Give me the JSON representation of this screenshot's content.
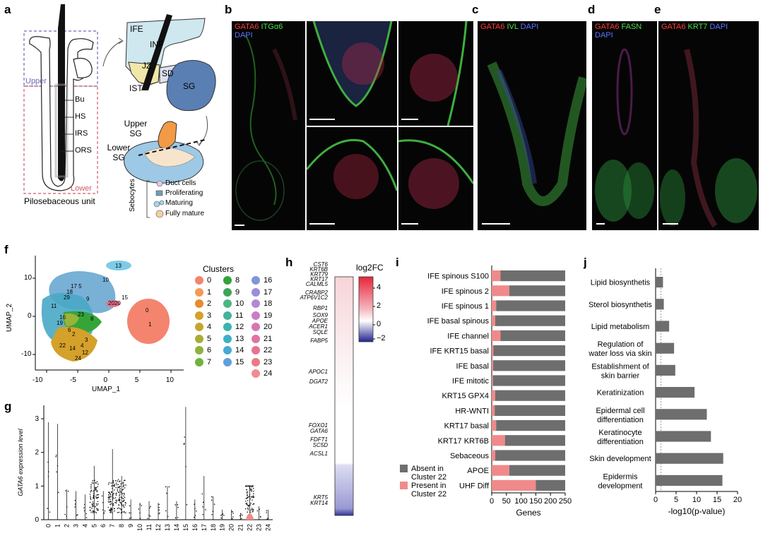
{
  "panel_letters": [
    "a",
    "b",
    "c",
    "d",
    "e",
    "f",
    "g",
    "h",
    "i",
    "j"
  ],
  "panel_a": {
    "upper": "Upper",
    "lower": "Lower",
    "structures": [
      "Bu",
      "HS",
      "IRS",
      "ORS"
    ],
    "caption": "Pilosebaceous unit",
    "regions": [
      "IFE",
      "INF",
      "JZ",
      "SD",
      "IST",
      "SG"
    ],
    "sg_labels": [
      "Upper SG",
      "Lower SG"
    ],
    "legend_title": "Sebocytes",
    "legend_items": [
      "Duct cells",
      "Proliferating",
      "Maturing",
      "Fully mature"
    ]
  },
  "panel_b": {
    "stain": [
      "GATA6",
      "ITGα6",
      "DAPI"
    ]
  },
  "panel_c": {
    "stain": [
      "GATA6",
      "IVL",
      "DAPI"
    ]
  },
  "panel_d": {
    "stain": [
      "GATA6",
      "FASN",
      "DAPI"
    ]
  },
  "panel_e": {
    "stain": [
      "GATA6",
      "KRT7",
      "DAPI"
    ]
  },
  "panel_f": {
    "xlabel": "UMAP_1",
    "ylabel": "UMAP_2",
    "xticks": [
      "-10",
      "-5",
      "0",
      "5",
      "10"
    ],
    "yticks": [
      "10",
      "0",
      "-10"
    ],
    "legend_title": "Clusters",
    "clusters": [
      {
        "id": "0",
        "color": "#f4846e"
      },
      {
        "id": "1",
        "color": "#f49a55"
      },
      {
        "id": "2",
        "color": "#e98a2b"
      },
      {
        "id": "3",
        "color": "#d4a12a"
      },
      {
        "id": "4",
        "color": "#c5a52e"
      },
      {
        "id": "5",
        "color": "#a9ad33"
      },
      {
        "id": "6",
        "color": "#8fb23a"
      },
      {
        "id": "7",
        "color": "#6fb33d"
      },
      {
        "id": "8",
        "color": "#2fa43a"
      },
      {
        "id": "9",
        "color": "#3aa55a"
      },
      {
        "id": "10",
        "color": "#4db486"
      },
      {
        "id": "11",
        "color": "#43b39a"
      },
      {
        "id": "12",
        "color": "#3bb4b0"
      },
      {
        "id": "13",
        "color": "#3cb1c6"
      },
      {
        "id": "14",
        "color": "#48a8d6"
      },
      {
        "id": "15",
        "color": "#5f9fdb"
      },
      {
        "id": "16",
        "color": "#7e96da"
      },
      {
        "id": "17",
        "color": "#9a8fd6"
      },
      {
        "id": "18",
        "color": "#b38ad0"
      },
      {
        "id": "19",
        "color": "#c77fc6"
      },
      {
        "id": "20",
        "color": "#d677b5"
      },
      {
        "id": "21",
        "color": "#df74a4"
      },
      {
        "id": "22",
        "color": "#e6738f"
      },
      {
        "id": "23",
        "color": "#ea7a82"
      },
      {
        "id": "24",
        "color": "#ef8c91"
      }
    ]
  },
  "panel_h": {
    "colorbar_title": "log2FC",
    "colorbar_ticks": [
      "4",
      "2",
      "0",
      "−2"
    ],
    "genes": [
      "CST6",
      "KRT6B",
      "KRT79",
      "KRT17",
      "CALML5",
      "CRABP2",
      "ATP6V1C2",
      "RBP1",
      "SOX9",
      "APOE",
      "ACER1",
      "SQLE",
      "FABP5",
      "APOC1",
      "DGAT2",
      "FOXO1",
      "GATA6",
      "FDFT1",
      "SC5D",
      "ACSL1",
      "KRT5",
      "KRT14"
    ]
  },
  "chart_data": [
    {
      "panel": "g",
      "type": "scatter",
      "ylabel": "GATA6 expression level",
      "categories": [
        "0",
        "1",
        "2",
        "3",
        "4",
        "5",
        "6",
        "7",
        "8",
        "9",
        "10",
        "11",
        "12",
        "13",
        "14",
        "15",
        "16",
        "17",
        "18",
        "19",
        "20",
        "21",
        "22",
        "23",
        "24"
      ],
      "yticks": [
        "0",
        "1",
        "2",
        "3"
      ],
      "ylim": [
        0,
        3.4
      ],
      "max_values": [
        2.9,
        2.85,
        0.9,
        0.85,
        0.75,
        1.6,
        0.85,
        2.1,
        1.3,
        0.6,
        0.5,
        0.55,
        0.5,
        1.0,
        0.55,
        3.35,
        0.6,
        1.3,
        0.7,
        0.3,
        0.3,
        0.2,
        1.0,
        0.4,
        0.3
      ],
      "dense_clusters": [
        "5",
        "7",
        "8",
        "22"
      ]
    },
    {
      "panel": "i",
      "type": "bar",
      "orientation": "horizontal",
      "stacked": true,
      "xlabel": "Genes",
      "xticks": [
        "0",
        "50",
        "100",
        "150",
        "200",
        "250"
      ],
      "xlim": [
        0,
        250
      ],
      "categories": [
        "IFE spinous S100",
        "IFE spinous 2",
        "IFE spinous 1",
        "IFE basal spinous",
        "IFE channel",
        "IFE KRT15 basal",
        "IFE basal",
        "IFE mitotic",
        "KRT15 GPX4",
        "HR-WNTI",
        "KRT17 basal",
        "KRT17 KRT6B",
        "Sebaceous",
        "APOE",
        "UHF Diff"
      ],
      "series": [
        {
          "name": "Present in Cluster 22",
          "color": "#f08a8a",
          "values": [
            30,
            60,
            15,
            12,
            30,
            6,
            5,
            4,
            12,
            10,
            15,
            45,
            12,
            60,
            150
          ]
        },
        {
          "name": "Absent in Cluster 22",
          "color": "#6e6e6e",
          "values": [
            220,
            190,
            235,
            238,
            220,
            244,
            245,
            246,
            238,
            240,
            235,
            205,
            238,
            190,
            100
          ]
        }
      ]
    },
    {
      "panel": "j",
      "type": "bar",
      "orientation": "horizontal",
      "xlabel": "-log10(p-value)",
      "xticks": [
        "0",
        "5",
        "10",
        "15",
        "20"
      ],
      "xlim": [
        0,
        20
      ],
      "categories": [
        "Lipid biosynthetis",
        "Sterol biosynthetis",
        "Lipid metabolism",
        "Regulation of water loss via skin",
        "Establishment of skin barrier",
        "Keratinization",
        "Epidermal cell differentiation",
        "Keratinocyte differentiation",
        "Skin development",
        "Epidermis development"
      ],
      "values": [
        1.8,
        2.0,
        3.3,
        4.5,
        4.8,
        9.5,
        12.5,
        13.5,
        16.5,
        16.3
      ],
      "color": "#6e6e6e"
    }
  ]
}
